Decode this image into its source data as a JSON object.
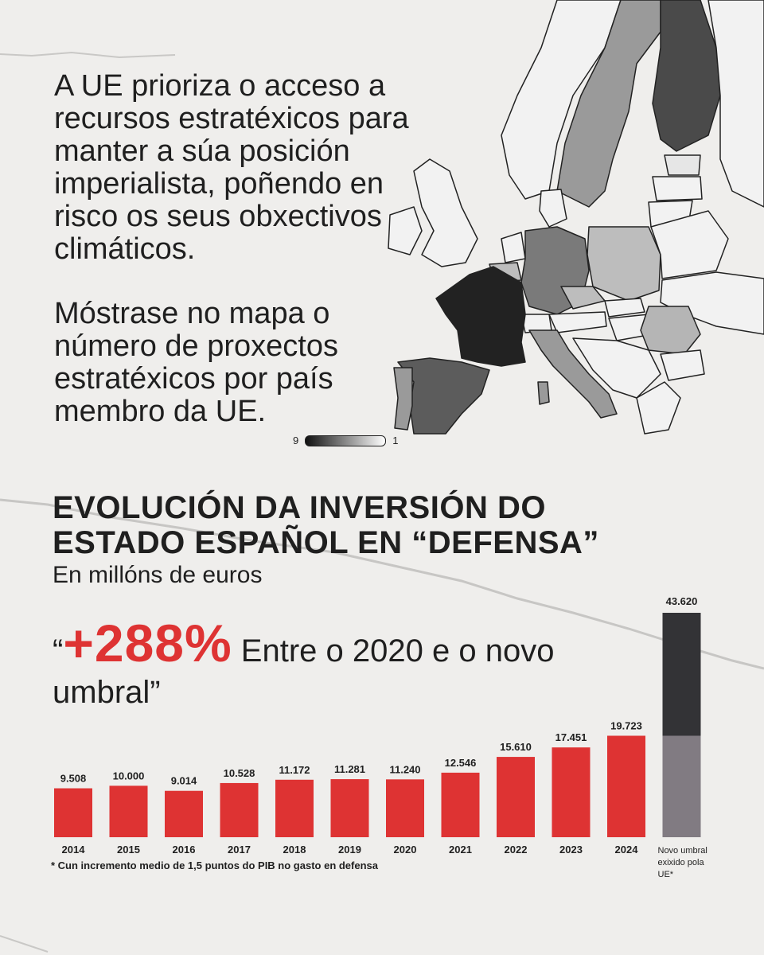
{
  "intro": {
    "paragraph1": "A UE prioriza o acceso a recursos estratéxicos para manter a súa posición imperialista, poñendo en risco os seus obxectivos climáticos.",
    "paragraph2": "Móstrase no mapa o número de proxectos estratéxicos por país membro da UE."
  },
  "map_scale": {
    "min_label": "1",
    "max_label": "9"
  },
  "heading": {
    "title_line1": "EVOLUCIÓN DA INVERSIÓN DO",
    "title_line2": "ESTADO ESPAÑOL EN “DEFENSA”",
    "subtitle": "En millóns de euros"
  },
  "callout": {
    "open_quote": "“",
    "percent": "+288%",
    "text": " Entre o 2020 e o novo umbral”"
  },
  "footnote": "* Cun incremento medio de 1,5 puntos do PIB no gasto en defensa",
  "colors": {
    "accent": "#de3333",
    "new_threshold_dark": "#333336",
    "new_threshold_light": "#817b82"
  },
  "chart_data": {
    "type": "bar",
    "title": "EVOLUCIÓN DA INVERSIÓN DO ESTADO ESPAÑOL EN “DEFENSA”",
    "subtitle": "En millóns de euros",
    "categories": [
      "2014",
      "2015",
      "2016",
      "2017",
      "2018",
      "2019",
      "2020",
      "2021",
      "2022",
      "2023",
      "2024"
    ],
    "values": [
      9508,
      10000,
      9014,
      10528,
      11172,
      11281,
      11240,
      12546,
      15610,
      17451,
      19723
    ],
    "value_labels": [
      "9.508",
      "10.000",
      "9.014",
      "10.528",
      "11.172",
      "11.281",
      "11.240",
      "12.546",
      "15.610",
      "17.451",
      "19.723"
    ],
    "extra_bar": {
      "label_lines": [
        "Novo umbral",
        "exixido pola",
        "UE*"
      ],
      "value": 43620,
      "value_label": "43.620",
      "base_value": 19723
    },
    "ylim": [
      0,
      43620
    ],
    "grid": false,
    "xlabel": "",
    "ylabel": ""
  }
}
